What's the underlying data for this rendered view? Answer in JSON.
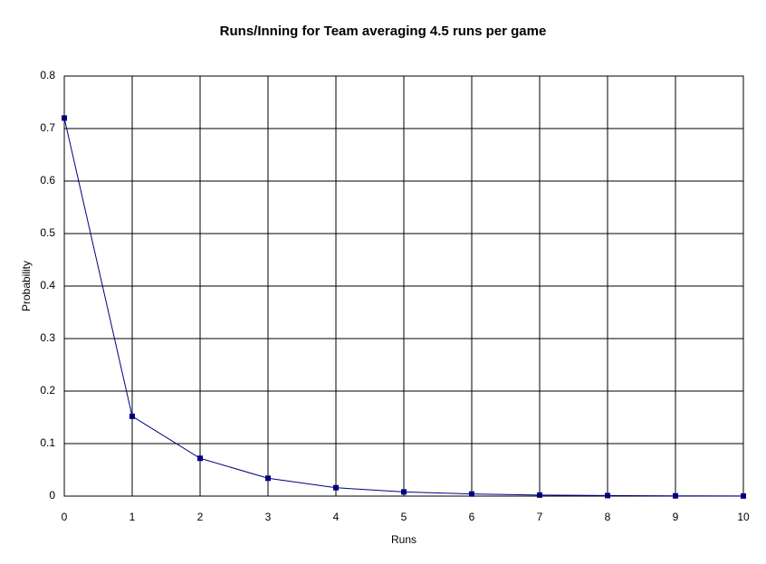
{
  "chart_data": {
    "type": "line",
    "title": "Runs/Inning for Team averaging 4.5 runs per game",
    "x_label": "Runs",
    "y_label": "Probability",
    "x": [
      0,
      1,
      2,
      3,
      4,
      5,
      6,
      7,
      8,
      9,
      10
    ],
    "series": [
      {
        "color": "#000080",
        "values": [
          0.72,
          0.152,
          0.072,
          0.034,
          0.016,
          0.008,
          0.004,
          0.002,
          0.001,
          0.0005,
          0.0002
        ]
      }
    ],
    "xlim": [
      0,
      10
    ],
    "xticks": [
      0,
      1,
      2,
      3,
      4,
      5,
      6,
      7,
      8,
      9,
      10
    ],
    "ylim": [
      0,
      0.8
    ],
    "yticks": [
      0,
      0.1,
      0.2,
      0.3,
      0.4,
      0.5,
      0.6,
      0.7,
      0.8
    ],
    "grid": true
  }
}
